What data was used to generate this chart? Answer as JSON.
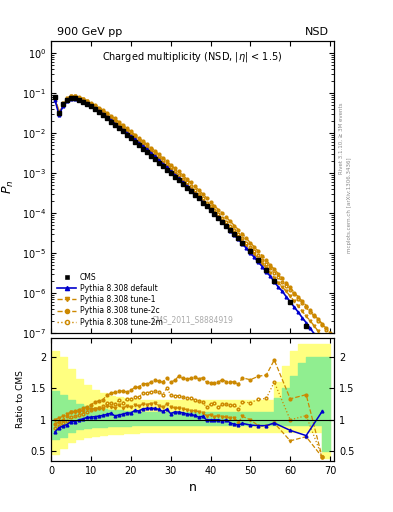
{
  "title_top_left": "900 GeV pp",
  "title_top_right": "NSD",
  "plot_title": "Charged multiplicity (NSD, |\\u03b7| < 1.5)",
  "ylabel_main": "$P_n$",
  "ylabel_ratio": "Ratio to CMS",
  "xlabel": "n",
  "watermark": "CMS_2011_S8884919",
  "xlim": [
    0,
    71
  ],
  "cms_n": [
    1,
    2,
    3,
    4,
    5,
    6,
    7,
    8,
    9,
    10,
    11,
    12,
    13,
    14,
    15,
    16,
    17,
    18,
    19,
    20,
    21,
    22,
    23,
    24,
    25,
    26,
    27,
    28,
    29,
    30,
    31,
    32,
    33,
    34,
    35,
    36,
    37,
    38,
    39,
    40,
    41,
    42,
    43,
    44,
    45,
    46,
    47,
    48,
    50,
    52,
    54,
    56,
    60,
    64,
    68
  ],
  "cms_y": [
    0.08,
    0.032,
    0.052,
    0.068,
    0.073,
    0.073,
    0.068,
    0.061,
    0.053,
    0.046,
    0.039,
    0.033,
    0.028,
    0.023,
    0.019,
    0.016,
    0.013,
    0.011,
    0.009,
    0.0075,
    0.006,
    0.005,
    0.004,
    0.0033,
    0.0027,
    0.0022,
    0.0018,
    0.0015,
    0.0012,
    0.001,
    0.0008,
    0.00065,
    0.00053,
    0.00043,
    0.00035,
    0.00028,
    0.00023,
    0.00018,
    0.00015,
    0.00012,
    9.5e-05,
    7.5e-05,
    6e-05,
    4.8e-05,
    3.8e-05,
    3e-05,
    2.3e-05,
    1.8e-05,
    1.1e-05,
    6.5e-06,
    3.8e-06,
    2e-06,
    6e-07,
    1.5e-07,
    3e-08
  ],
  "default_n": [
    1,
    2,
    3,
    4,
    5,
    6,
    7,
    8,
    9,
    10,
    11,
    12,
    13,
    14,
    15,
    16,
    17,
    18,
    19,
    20,
    21,
    22,
    23,
    24,
    25,
    26,
    27,
    28,
    29,
    30,
    31,
    32,
    33,
    34,
    35,
    36,
    37,
    38,
    39,
    40,
    41,
    42,
    43,
    44,
    45,
    46,
    47,
    48,
    49,
    50,
    51,
    52,
    53,
    54,
    55,
    56,
    57,
    58,
    59,
    60,
    61,
    62,
    63,
    64,
    65,
    66,
    67,
    68,
    69,
    70
  ],
  "default_y": [
    0.065,
    0.028,
    0.047,
    0.063,
    0.071,
    0.071,
    0.068,
    0.062,
    0.055,
    0.048,
    0.041,
    0.035,
    0.03,
    0.025,
    0.021,
    0.017,
    0.014,
    0.012,
    0.01,
    0.0083,
    0.0069,
    0.0057,
    0.0047,
    0.0039,
    0.0032,
    0.0026,
    0.0021,
    0.0017,
    0.0014,
    0.0011,
    0.0009,
    0.00073,
    0.00059,
    0.00047,
    0.00038,
    0.0003,
    0.00024,
    0.00019,
    0.00015,
    0.00012,
    9.5e-05,
    7.5e-05,
    5.9e-05,
    4.6e-05,
    3.6e-05,
    2.8e-05,
    2.2e-05,
    1.7e-05,
    1.3e-05,
    1e-05,
    7.7e-06,
    5.9e-06,
    4.5e-06,
    3.4e-06,
    2.6e-06,
    1.9e-06,
    1.4e-06,
    1.1e-06,
    8e-07,
    6e-07,
    4.4e-07,
    3.3e-07,
    2.4e-07,
    1.8e-07,
    1.3e-07,
    9.5e-08,
    7e-08,
    5e-08,
    3.7e-08,
    2.7e-08
  ],
  "tune1_n": [
    1,
    2,
    3,
    4,
    5,
    6,
    7,
    8,
    9,
    10,
    11,
    12,
    13,
    14,
    15,
    16,
    17,
    18,
    19,
    20,
    21,
    22,
    23,
    24,
    25,
    26,
    27,
    28,
    29,
    30,
    31,
    32,
    33,
    34,
    35,
    36,
    37,
    38,
    39,
    40,
    41,
    42,
    43,
    44,
    45,
    46,
    47,
    48,
    49,
    50,
    51,
    52,
    53,
    54,
    55,
    56,
    57,
    58,
    59,
    60,
    61,
    62,
    63,
    64,
    65,
    66,
    67,
    68,
    69,
    70
  ],
  "tune1_y": [
    0.08,
    0.033,
    0.055,
    0.074,
    0.082,
    0.082,
    0.077,
    0.07,
    0.062,
    0.054,
    0.046,
    0.039,
    0.033,
    0.028,
    0.023,
    0.019,
    0.016,
    0.013,
    0.011,
    0.009,
    0.0074,
    0.0061,
    0.005,
    0.0041,
    0.0034,
    0.0028,
    0.0022,
    0.0018,
    0.0015,
    0.0012,
    0.00095,
    0.00077,
    0.00062,
    0.0005,
    0.0004,
    0.00032,
    0.00026,
    0.0002,
    0.00016,
    0.00013,
    0.0001,
    8e-05,
    6.3e-05,
    5e-05,
    3.9e-05,
    3.1e-05,
    2.4e-05,
    1.9e-05,
    1.5e-05,
    1.2e-05,
    9.2e-06,
    7.1e-06,
    5.4e-06,
    4.2e-06,
    3.2e-06,
    2.4e-06,
    1.8e-06,
    1.4e-06,
    1.1e-06,
    8.2e-07,
    6.2e-07,
    4.7e-07,
    3.5e-07,
    2.6e-07,
    2e-07,
    1.5e-07,
    1.1e-07,
    8.2e-08,
    6.2e-08,
    4.6e-08
  ],
  "tune2c_n": [
    1,
    2,
    3,
    4,
    5,
    6,
    7,
    8,
    9,
    10,
    11,
    12,
    13,
    14,
    15,
    16,
    17,
    18,
    19,
    20,
    21,
    22,
    23,
    24,
    25,
    26,
    27,
    28,
    29,
    30,
    31,
    32,
    33,
    34,
    35,
    36,
    37,
    38,
    39,
    40,
    41,
    42,
    43,
    44,
    45,
    46,
    47,
    48,
    49,
    50,
    51,
    52,
    53,
    54,
    55,
    56,
    57,
    58,
    59,
    60,
    61,
    62,
    63,
    64,
    65,
    66,
    67,
    68,
    69,
    70
  ],
  "tune2c_y": [
    0.075,
    0.031,
    0.052,
    0.072,
    0.082,
    0.083,
    0.079,
    0.072,
    0.064,
    0.057,
    0.05,
    0.043,
    0.037,
    0.032,
    0.027,
    0.023,
    0.019,
    0.016,
    0.013,
    0.011,
    0.0091,
    0.0076,
    0.0063,
    0.0052,
    0.0043,
    0.0036,
    0.0029,
    0.0024,
    0.002,
    0.0016,
    0.0013,
    0.0011,
    0.00088,
    0.00071,
    0.00058,
    0.00047,
    0.00038,
    0.0003,
    0.00024,
    0.00019,
    0.00015,
    0.00012,
    9.8e-05,
    7.7e-05,
    6.1e-05,
    4.8e-05,
    3.8e-05,
    3e-05,
    2.3e-05,
    1.8e-05,
    1.4e-05,
    1.1e-05,
    8.4e-06,
    6.5e-06,
    5e-06,
    3.9e-06,
    3e-06,
    2.3e-06,
    1.8e-06,
    1.4e-06,
    1e-06,
    8e-07,
    6.2e-07,
    4.8e-07,
    3.7e-07,
    2.8e-07,
    2.2e-07,
    1.7e-07,
    1.3e-07,
    1e-07
  ],
  "tune2m_n": [
    1,
    2,
    3,
    4,
    5,
    6,
    7,
    8,
    9,
    10,
    11,
    12,
    13,
    14,
    15,
    16,
    17,
    18,
    19,
    20,
    21,
    22,
    23,
    24,
    25,
    26,
    27,
    28,
    29,
    30,
    31,
    32,
    33,
    34,
    35,
    36,
    37,
    38,
    39,
    40,
    41,
    42,
    43,
    44,
    45,
    46,
    47,
    48,
    49,
    50,
    51,
    52,
    53,
    54,
    55,
    56,
    57,
    58,
    59,
    60,
    61,
    62,
    63,
    64,
    65,
    66,
    67,
    68,
    69,
    70
  ],
  "tune2m_y": [
    0.07,
    0.029,
    0.049,
    0.067,
    0.076,
    0.077,
    0.073,
    0.067,
    0.06,
    0.053,
    0.046,
    0.039,
    0.034,
    0.029,
    0.024,
    0.02,
    0.017,
    0.014,
    0.012,
    0.0098,
    0.0082,
    0.0068,
    0.0057,
    0.0047,
    0.0039,
    0.0032,
    0.0026,
    0.0021,
    0.0017,
    0.0014,
    0.0011,
    0.0009,
    0.00072,
    0.00058,
    0.00046,
    0.00037,
    0.00029,
    0.00023,
    0.00018,
    0.00015,
    0.00012,
    9.3e-05,
    7.4e-05,
    5.9e-05,
    4.7e-05,
    3.7e-05,
    2.9e-05,
    2.3e-05,
    1.8e-05,
    1.4e-05,
    1.1e-05,
    8.6e-06,
    6.7e-06,
    5.2e-06,
    4.1e-06,
    3.2e-06,
    2.5e-06,
    1.9e-06,
    1.5e-06,
    1.2e-06,
    9.2e-07,
    7.1e-07,
    5.5e-07,
    4.3e-07,
    3.3e-07,
    2.6e-07,
    2e-07,
    1.6e-07,
    1.2e-07,
    9.5e-08
  ],
  "ratio_default_n": [
    1,
    2,
    3,
    4,
    5,
    6,
    7,
    8,
    9,
    10,
    11,
    12,
    13,
    14,
    15,
    16,
    17,
    18,
    19,
    20,
    21,
    22,
    23,
    24,
    25,
    26,
    27,
    28,
    29,
    30,
    31,
    32,
    33,
    34,
    35,
    36,
    37,
    38,
    39,
    40,
    41,
    42,
    43,
    44,
    45,
    46,
    47,
    48,
    50,
    52,
    54,
    56,
    60,
    64,
    68
  ],
  "ratio_default_y": [
    0.81,
    0.875,
    0.904,
    0.926,
    0.973,
    0.973,
    1.0,
    1.016,
    1.038,
    1.043,
    1.051,
    1.06,
    1.071,
    1.087,
    1.105,
    1.063,
    1.077,
    1.091,
    1.111,
    1.107,
    1.15,
    1.14,
    1.175,
    1.182,
    1.185,
    1.182,
    1.167,
    1.133,
    1.167,
    1.1,
    1.125,
    1.123,
    1.113,
    1.093,
    1.086,
    1.071,
    1.043,
    1.056,
    1.0,
    1.0,
    1.0,
    1.0,
    0.983,
    1.0,
    0.947,
    0.933,
    0.917,
    0.944,
    0.917,
    0.908,
    0.908,
    0.95,
    0.833,
    0.75,
    1.133
  ],
  "ratio_tune1_n": [
    1,
    2,
    3,
    4,
    5,
    6,
    7,
    8,
    9,
    10,
    11,
    12,
    13,
    14,
    15,
    16,
    17,
    18,
    19,
    20,
    21,
    22,
    23,
    24,
    25,
    26,
    27,
    28,
    29,
    30,
    31,
    32,
    33,
    34,
    35,
    36,
    37,
    38,
    39,
    40,
    41,
    42,
    43,
    44,
    45,
    46,
    47,
    48,
    50,
    52,
    54,
    56,
    60,
    64,
    68
  ],
  "ratio_tune1_y": [
    1.0,
    1.03,
    1.058,
    1.088,
    1.123,
    1.123,
    1.132,
    1.148,
    1.17,
    1.174,
    1.179,
    1.182,
    1.179,
    1.217,
    1.211,
    1.188,
    1.231,
    1.182,
    1.222,
    1.2,
    1.233,
    1.22,
    1.25,
    1.242,
    1.259,
    1.273,
    1.222,
    1.2,
    1.25,
    1.2,
    1.188,
    1.185,
    1.17,
    1.163,
    1.143,
    1.143,
    1.13,
    1.111,
    1.067,
    1.083,
    1.053,
    1.067,
    1.05,
    1.042,
    1.026,
    1.033,
    0.957,
    1.056,
    1.0,
    0.908,
    0.895,
    0.95,
    0.667,
    0.733,
    0.41
  ],
  "ratio_tune2c_n": [
    1,
    2,
    3,
    4,
    5,
    6,
    7,
    8,
    9,
    10,
    11,
    12,
    13,
    14,
    15,
    16,
    17,
    18,
    19,
    20,
    21,
    22,
    23,
    24,
    25,
    26,
    27,
    28,
    29,
    30,
    31,
    32,
    33,
    34,
    35,
    36,
    37,
    38,
    39,
    40,
    41,
    42,
    43,
    44,
    45,
    46,
    47,
    48,
    50,
    52,
    54,
    56,
    60,
    64,
    68
  ],
  "ratio_tune2c_y": [
    0.9375,
    0.969,
    1.0,
    1.059,
    1.123,
    1.137,
    1.162,
    1.18,
    1.208,
    1.239,
    1.282,
    1.303,
    1.321,
    1.391,
    1.421,
    1.438,
    1.462,
    1.455,
    1.444,
    1.467,
    1.517,
    1.52,
    1.575,
    1.576,
    1.593,
    1.636,
    1.611,
    1.6,
    1.667,
    1.6,
    1.625,
    1.692,
    1.66,
    1.651,
    1.657,
    1.679,
    1.652,
    1.667,
    1.6,
    1.583,
    1.579,
    1.6,
    1.64,
    1.604,
    1.605,
    1.6,
    1.565,
    1.667,
    1.636,
    1.692,
    1.711,
    1.95,
    1.333,
    1.4,
    0.41
  ],
  "ratio_tune2m_n": [
    1,
    2,
    3,
    4,
    5,
    6,
    7,
    8,
    9,
    10,
    11,
    12,
    13,
    14,
    15,
    16,
    17,
    18,
    19,
    20,
    21,
    22,
    23,
    24,
    25,
    26,
    27,
    28,
    29,
    30,
    31,
    32,
    33,
    34,
    35,
    36,
    37,
    38,
    39,
    40,
    41,
    42,
    43,
    44,
    45,
    46,
    47,
    48,
    50,
    52,
    54,
    56,
    60,
    64,
    68
  ],
  "ratio_tune2m_y": [
    0.875,
    0.906,
    0.942,
    0.985,
    1.041,
    1.055,
    1.074,
    1.098,
    1.132,
    1.152,
    1.179,
    1.182,
    1.214,
    1.261,
    1.263,
    1.25,
    1.308,
    1.273,
    1.333,
    1.333,
    1.367,
    1.36,
    1.425,
    1.424,
    1.444,
    1.455,
    1.444,
    1.4,
    1.5,
    1.4,
    1.375,
    1.385,
    1.358,
    1.349,
    1.343,
    1.321,
    1.304,
    1.278,
    1.2,
    1.25,
    1.263,
    1.2,
    1.246,
    1.25,
    1.237,
    1.233,
    1.174,
    1.278,
    1.273,
    1.323,
    1.342,
    1.6,
    1.0,
    1.067,
    0.41
  ],
  "green_band_n": [
    0,
    2,
    4,
    6,
    8,
    10,
    12,
    14,
    16,
    18,
    20,
    22,
    24,
    26,
    28,
    30,
    32,
    34,
    36,
    38,
    40,
    42,
    44,
    46,
    48,
    50,
    52,
    54,
    56,
    58,
    60,
    62,
    64,
    66,
    68,
    70
  ],
  "green_band_lo": [
    0.7,
    0.73,
    0.8,
    0.85,
    0.87,
    0.88,
    0.89,
    0.9,
    0.91,
    0.91,
    0.92,
    0.92,
    0.92,
    0.92,
    0.92,
    0.92,
    0.92,
    0.92,
    0.92,
    0.92,
    0.92,
    0.92,
    0.92,
    0.92,
    0.92,
    0.92,
    0.92,
    0.92,
    0.92,
    0.92,
    0.92,
    0.92,
    0.92,
    0.92,
    0.5,
    0.5
  ],
  "green_band_hi": [
    1.45,
    1.4,
    1.32,
    1.25,
    1.22,
    1.19,
    1.17,
    1.16,
    1.15,
    1.14,
    1.14,
    1.13,
    1.13,
    1.13,
    1.13,
    1.13,
    1.13,
    1.13,
    1.13,
    1.13,
    1.13,
    1.13,
    1.13,
    1.13,
    1.13,
    1.13,
    1.13,
    1.13,
    1.35,
    1.5,
    1.7,
    1.9,
    2.0,
    2.0,
    2.0,
    2.0
  ],
  "yellow_band_n": [
    0,
    2,
    4,
    6,
    8,
    10,
    12,
    14,
    16,
    18,
    20,
    22,
    24,
    26,
    28,
    30,
    32,
    34,
    36,
    38,
    40,
    42,
    44,
    46,
    48,
    50,
    52,
    54,
    56,
    58,
    60,
    62,
    64,
    66,
    68,
    70
  ],
  "yellow_band_lo": [
    0.45,
    0.55,
    0.65,
    0.7,
    0.72,
    0.74,
    0.76,
    0.77,
    0.78,
    0.79,
    0.79,
    0.8,
    0.8,
    0.8,
    0.8,
    0.8,
    0.8,
    0.8,
    0.8,
    0.8,
    0.8,
    0.8,
    0.8,
    0.8,
    0.8,
    0.8,
    0.8,
    0.8,
    0.8,
    0.8,
    0.8,
    0.8,
    0.8,
    0.8,
    0.4,
    0.4
  ],
  "yellow_band_hi": [
    2.1,
    2.0,
    1.8,
    1.65,
    1.55,
    1.48,
    1.42,
    1.38,
    1.36,
    1.34,
    1.33,
    1.32,
    1.32,
    1.31,
    1.31,
    1.31,
    1.31,
    1.31,
    1.31,
    1.31,
    1.31,
    1.31,
    1.31,
    1.31,
    1.31,
    1.31,
    1.31,
    1.31,
    1.6,
    1.85,
    2.1,
    2.2,
    2.2,
    2.2,
    2.2,
    2.2
  ],
  "color_cms": "#000000",
  "color_default": "#0000cc",
  "color_tune1": "#cc8800",
  "color_tune2c": "#cc8800",
  "color_tune2m": "#cc8800",
  "color_green": "#90ee90",
  "color_yellow": "#ffff80",
  "bg_color": "#ffffff"
}
